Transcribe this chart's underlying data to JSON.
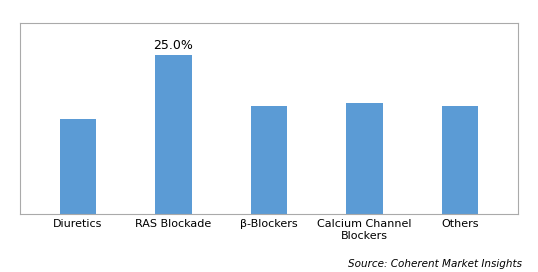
{
  "categories": [
    "Diuretics",
    "RAS Blockade",
    "β-Blockers",
    "Calcium Channel\nBlockers",
    "Others"
  ],
  "values": [
    15.0,
    25.0,
    17.0,
    17.5,
    17.0
  ],
  "bar_color": "#5B9BD5",
  "annotated_bar_index": 1,
  "annotation_text": "25.0%",
  "annotation_fontsize": 9,
  "ylim": [
    0,
    30
  ],
  "source_text": "Source: Coherent Market Insights",
  "source_fontsize": 7.5,
  "tick_fontsize": 8,
  "background_color": "#FFFFFF",
  "grid_color": "#D0D0D0",
  "bar_width": 0.38,
  "border_color": "#AAAAAA",
  "border_linewidth": 0.8
}
